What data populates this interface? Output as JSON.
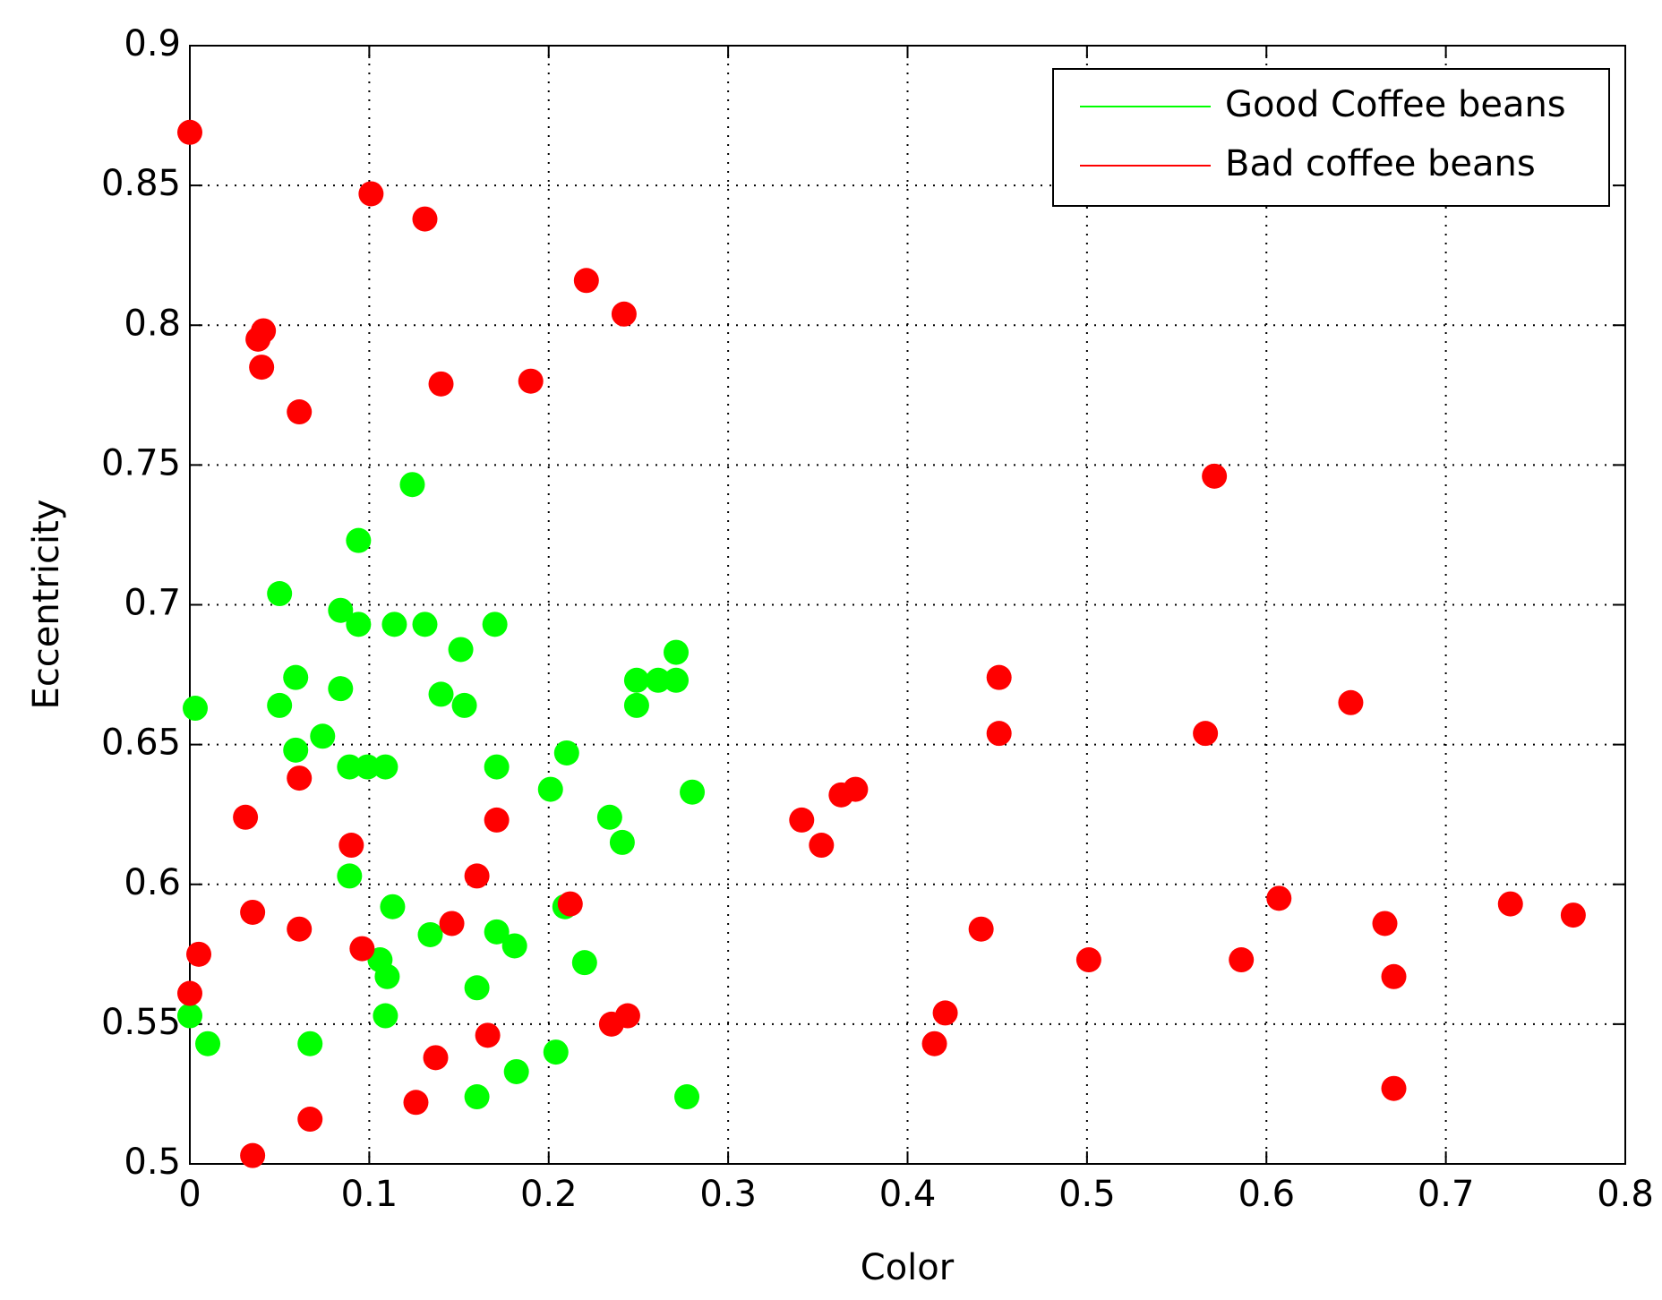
{
  "chart_data": {
    "type": "scatter",
    "xlabel": "Color",
    "ylabel": "Eccentricity",
    "xlim": [
      0,
      0.8
    ],
    "ylim": [
      0.5,
      0.9
    ],
    "xticks": [
      0,
      0.1,
      0.2,
      0.3,
      0.4,
      0.5,
      0.6,
      0.7,
      0.8
    ],
    "yticks": [
      0.5,
      0.55,
      0.6,
      0.65,
      0.7,
      0.75,
      0.8,
      0.85,
      0.9
    ],
    "grid": true,
    "legend": "northeast",
    "series": [
      {
        "name": "Good Coffee beans",
        "color": "#00ff00",
        "x": [
          0.003,
          0,
          0.01,
          0.05,
          0.05,
          0.059,
          0.059,
          0.074,
          0.067,
          0.084,
          0.094,
          0.084,
          0.089,
          0.099,
          0.109,
          0.094,
          0.124,
          0.114,
          0.131,
          0.089,
          0.113,
          0.106,
          0.11,
          0.109,
          0.134,
          0.14,
          0.151,
          0.153,
          0.17,
          0.171,
          0.171,
          0.181,
          0.16,
          0.16,
          0.182,
          0.201,
          0.21,
          0.209,
          0.22,
          0.204,
          0.234,
          0.241,
          0.249,
          0.249,
          0.261,
          0.271,
          0.271,
          0.28,
          0.277
        ],
        "values": [
          0.663,
          0.553,
          0.543,
          0.704,
          0.664,
          0.674,
          0.648,
          0.653,
          0.543,
          0.698,
          0.693,
          0.67,
          0.642,
          0.642,
          0.642,
          0.723,
          0.743,
          0.693,
          0.693,
          0.603,
          0.592,
          0.573,
          0.567,
          0.553,
          0.582,
          0.668,
          0.684,
          0.664,
          0.693,
          0.642,
          0.583,
          0.578,
          0.563,
          0.524,
          0.533,
          0.634,
          0.647,
          0.592,
          0.572,
          0.54,
          0.624,
          0.615,
          0.673,
          0.664,
          0.673,
          0.683,
          0.673,
          0.633,
          0.524
        ]
      },
      {
        "name": "Bad coffee beans",
        "color": "#ff0000",
        "x": [
          0,
          0,
          0.005,
          0.035,
          0.031,
          0.035,
          0.041,
          0.038,
          0.04,
          0.061,
          0.061,
          0.061,
          0.067,
          0.09,
          0.096,
          0.101,
          0.131,
          0.14,
          0.126,
          0.137,
          0.146,
          0.16,
          0.171,
          0.166,
          0.19,
          0.212,
          0.221,
          0.242,
          0.235,
          0.244,
          0.341,
          0.352,
          0.363,
          0.371,
          0.415,
          0.421,
          0.441,
          0.451,
          0.451,
          0.501,
          0.566,
          0.571,
          0.586,
          0.607,
          0.647,
          0.666,
          0.671,
          0.671,
          0.736,
          0.771
        ],
        "values": [
          0.869,
          0.561,
          0.575,
          0.503,
          0.624,
          0.59,
          0.798,
          0.795,
          0.785,
          0.769,
          0.638,
          0.584,
          0.516,
          0.614,
          0.577,
          0.847,
          0.838,
          0.779,
          0.522,
          0.538,
          0.586,
          0.603,
          0.623,
          0.546,
          0.78,
          0.593,
          0.816,
          0.804,
          0.55,
          0.553,
          0.623,
          0.614,
          0.632,
          0.634,
          0.543,
          0.554,
          0.584,
          0.674,
          0.654,
          0.573,
          0.654,
          0.746,
          0.573,
          0.595,
          0.665,
          0.586,
          0.567,
          0.527,
          0.593,
          0.589
        ]
      }
    ]
  }
}
